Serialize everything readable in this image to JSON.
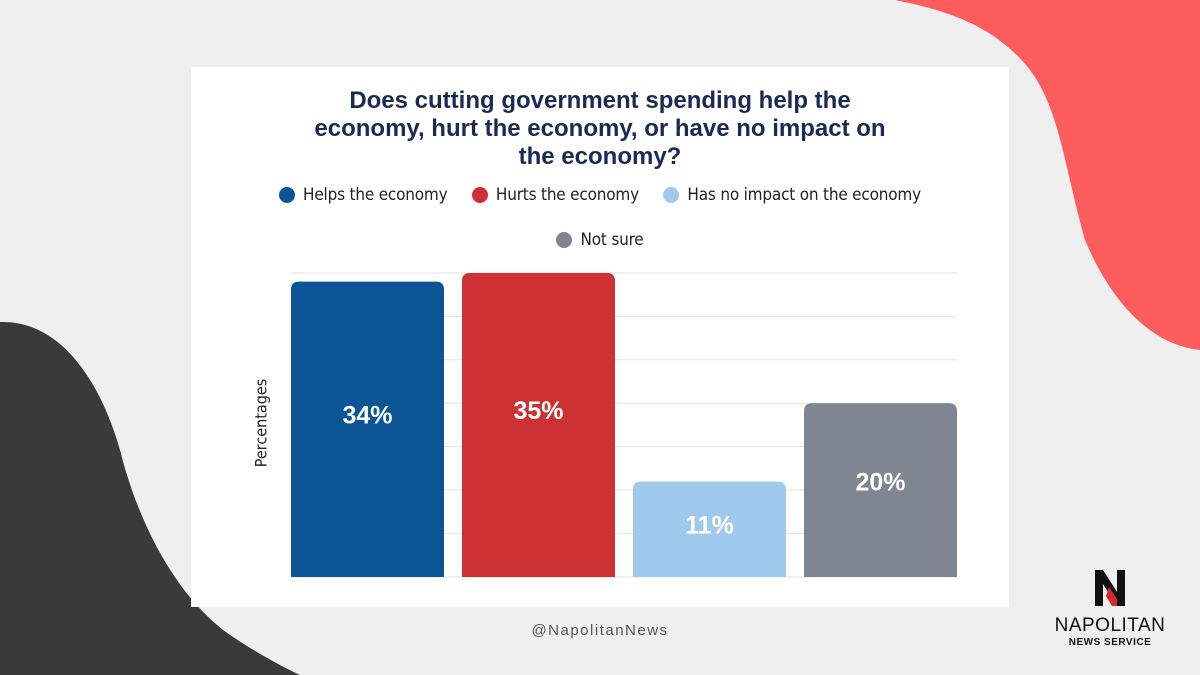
{
  "colors": {
    "helps": "#0b5597",
    "hurts": "#cd3134",
    "no_impact": "#a0caed",
    "not_sure": "#7f8591",
    "title": "#1b2a55",
    "accent_red": "#fd5c5c",
    "accent_dark": "#3a3a3a"
  },
  "chart_data": {
    "type": "bar",
    "title_lines": [
      "Does cutting government spending help the",
      "economy, hurt the economy, or have no impact on",
      "the economy?"
    ],
    "ylabel": "Percentages",
    "ylim": [
      0,
      35
    ],
    "grid": true,
    "legend_position": "top",
    "series": [
      {
        "name": "Helps the economy",
        "value": 34,
        "label": "34%",
        "color": "#0b5597"
      },
      {
        "name": "Hurts the economy",
        "value": 35,
        "label": "35%",
        "color": "#cd3134"
      },
      {
        "name": "Has no impact on the economy",
        "value": 11,
        "label": "11%",
        "color": "#a0caed"
      },
      {
        "name": "Not sure",
        "value": 20,
        "label": "20%",
        "color": "#7f8591"
      }
    ]
  },
  "footer": {
    "handle": "@NapolitanNews"
  },
  "logo": {
    "name": "NAPOLITAN",
    "subtitle": "NEWS SERVICE",
    "icon": "n-logo-icon"
  }
}
